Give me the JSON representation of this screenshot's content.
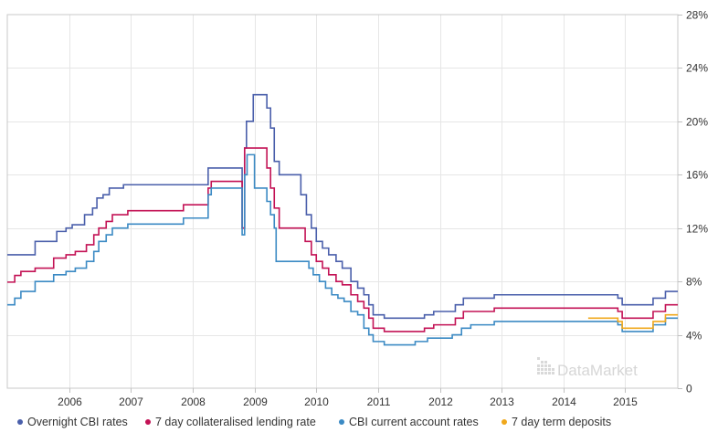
{
  "watermark": "DataMarket",
  "chart_data": {
    "type": "line",
    "title": "",
    "xlabel": "",
    "ylabel": "",
    "x_range": [
      2005.0,
      2015.85
    ],
    "ylim": [
      0,
      28
    ],
    "x_ticks": [
      {
        "label": "2006",
        "value": 2006.0
      },
      {
        "label": "2007",
        "value": 2007.0
      },
      {
        "label": "2008",
        "value": 2008.0
      },
      {
        "label": "2009",
        "value": 2009.0
      },
      {
        "label": "2010",
        "value": 2010.0
      },
      {
        "label": "2011",
        "value": 2011.0
      },
      {
        "label": "2012",
        "value": 2012.0
      },
      {
        "label": "2013",
        "value": 2013.0
      },
      {
        "label": "2014",
        "value": 2014.0
      },
      {
        "label": "2015",
        "value": 2015.0
      }
    ],
    "y_ticks": [
      {
        "label": "0",
        "value": 0
      },
      {
        "label": "4%",
        "value": 4
      },
      {
        "label": "8%",
        "value": 8
      },
      {
        "label": "12%",
        "value": 12
      },
      {
        "label": "16%",
        "value": 16
      },
      {
        "label": "20%",
        "value": 20
      },
      {
        "label": "24%",
        "value": 24
      },
      {
        "label": "28%",
        "value": 28
      }
    ],
    "y_axis_side": "right",
    "grid": true,
    "legend_position": "bottom",
    "series": [
      {
        "name": "Overnight CBI rates",
        "color": "#4a5fab",
        "points": [
          [
            2005.0,
            10.0
          ],
          [
            2005.45,
            10.0
          ],
          [
            2005.45,
            11.0
          ],
          [
            2005.8,
            11.0
          ],
          [
            2005.8,
            11.75
          ],
          [
            2005.95,
            11.75
          ],
          [
            2005.95,
            12.0
          ],
          [
            2006.05,
            12.0
          ],
          [
            2006.05,
            12.25
          ],
          [
            2006.25,
            12.25
          ],
          [
            2006.25,
            13.0
          ],
          [
            2006.38,
            13.0
          ],
          [
            2006.38,
            13.5
          ],
          [
            2006.45,
            13.5
          ],
          [
            2006.45,
            14.25
          ],
          [
            2006.55,
            14.25
          ],
          [
            2006.55,
            14.5
          ],
          [
            2006.65,
            14.5
          ],
          [
            2006.65,
            15.0
          ],
          [
            2006.88,
            15.0
          ],
          [
            2006.88,
            15.25
          ],
          [
            2008.25,
            15.25
          ],
          [
            2008.25,
            16.5
          ],
          [
            2008.8,
            16.5
          ],
          [
            2008.8,
            12.0
          ],
          [
            2008.84,
            12.0
          ],
          [
            2008.84,
            18.0
          ],
          [
            2008.87,
            18.0
          ],
          [
            2008.87,
            20.0
          ],
          [
            2008.98,
            20.0
          ],
          [
            2008.98,
            22.0
          ],
          [
            2009.2,
            22.0
          ],
          [
            2009.2,
            21.0
          ],
          [
            2009.26,
            21.0
          ],
          [
            2009.26,
            19.5
          ],
          [
            2009.32,
            19.5
          ],
          [
            2009.32,
            17.0
          ],
          [
            2009.4,
            17.0
          ],
          [
            2009.4,
            16.0
          ],
          [
            2009.75,
            16.0
          ],
          [
            2009.75,
            14.5
          ],
          [
            2009.84,
            14.5
          ],
          [
            2009.84,
            13.0
          ],
          [
            2009.92,
            13.0
          ],
          [
            2009.92,
            12.0
          ],
          [
            2010.0,
            12.0
          ],
          [
            2010.0,
            11.0
          ],
          [
            2010.1,
            11.0
          ],
          [
            2010.1,
            10.5
          ],
          [
            2010.2,
            10.5
          ],
          [
            2010.2,
            10.0
          ],
          [
            2010.32,
            10.0
          ],
          [
            2010.32,
            9.5
          ],
          [
            2010.42,
            9.5
          ],
          [
            2010.42,
            9.0
          ],
          [
            2010.56,
            9.0
          ],
          [
            2010.56,
            8.0
          ],
          [
            2010.67,
            8.0
          ],
          [
            2010.67,
            7.5
          ],
          [
            2010.77,
            7.5
          ],
          [
            2010.77,
            7.0
          ],
          [
            2010.85,
            7.0
          ],
          [
            2010.85,
            6.25
          ],
          [
            2010.92,
            6.25
          ],
          [
            2010.92,
            5.5
          ],
          [
            2011.1,
            5.5
          ],
          [
            2011.1,
            5.25
          ],
          [
            2011.75,
            5.25
          ],
          [
            2011.75,
            5.5
          ],
          [
            2011.9,
            5.5
          ],
          [
            2011.9,
            5.75
          ],
          [
            2012.25,
            5.75
          ],
          [
            2012.25,
            6.25
          ],
          [
            2012.38,
            6.25
          ],
          [
            2012.38,
            6.75
          ],
          [
            2012.88,
            6.75
          ],
          [
            2012.88,
            7.0
          ],
          [
            2014.88,
            7.0
          ],
          [
            2014.88,
            6.75
          ],
          [
            2014.95,
            6.75
          ],
          [
            2014.95,
            6.25
          ],
          [
            2015.45,
            6.25
          ],
          [
            2015.45,
            6.75
          ],
          [
            2015.65,
            6.75
          ],
          [
            2015.65,
            7.25
          ],
          [
            2015.85,
            7.25
          ]
        ]
      },
      {
        "name": "7 day collateralised lending rate",
        "color": "#c31255",
        "points": [
          [
            2005.0,
            7.95
          ],
          [
            2005.12,
            7.95
          ],
          [
            2005.12,
            8.45
          ],
          [
            2005.22,
            8.45
          ],
          [
            2005.22,
            8.75
          ],
          [
            2005.45,
            8.75
          ],
          [
            2005.45,
            9.0
          ],
          [
            2005.75,
            9.0
          ],
          [
            2005.75,
            9.75
          ],
          [
            2005.95,
            9.75
          ],
          [
            2005.95,
            10.0
          ],
          [
            2006.1,
            10.0
          ],
          [
            2006.1,
            10.25
          ],
          [
            2006.28,
            10.25
          ],
          [
            2006.28,
            10.75
          ],
          [
            2006.4,
            10.75
          ],
          [
            2006.4,
            11.5
          ],
          [
            2006.48,
            11.5
          ],
          [
            2006.48,
            12.0
          ],
          [
            2006.6,
            12.0
          ],
          [
            2006.6,
            12.5
          ],
          [
            2006.7,
            12.5
          ],
          [
            2006.7,
            13.0
          ],
          [
            2006.95,
            13.0
          ],
          [
            2006.95,
            13.3
          ],
          [
            2007.85,
            13.3
          ],
          [
            2007.85,
            13.75
          ],
          [
            2008.25,
            13.75
          ],
          [
            2008.25,
            15.0
          ],
          [
            2008.3,
            15.0
          ],
          [
            2008.3,
            15.5
          ],
          [
            2008.8,
            15.5
          ],
          [
            2008.8,
            12.0
          ],
          [
            2008.84,
            12.0
          ],
          [
            2008.84,
            18.0
          ],
          [
            2009.2,
            18.0
          ],
          [
            2009.2,
            16.5
          ],
          [
            2009.26,
            16.5
          ],
          [
            2009.26,
            15.0
          ],
          [
            2009.32,
            15.0
          ],
          [
            2009.32,
            13.5
          ],
          [
            2009.4,
            13.5
          ],
          [
            2009.4,
            12.0
          ],
          [
            2009.82,
            12.0
          ],
          [
            2009.82,
            11.0
          ],
          [
            2009.92,
            11.0
          ],
          [
            2009.92,
            10.0
          ],
          [
            2010.0,
            10.0
          ],
          [
            2010.0,
            9.5
          ],
          [
            2010.1,
            9.5
          ],
          [
            2010.1,
            9.0
          ],
          [
            2010.2,
            9.0
          ],
          [
            2010.2,
            8.5
          ],
          [
            2010.32,
            8.5
          ],
          [
            2010.32,
            8.0
          ],
          [
            2010.42,
            8.0
          ],
          [
            2010.42,
            7.75
          ],
          [
            2010.56,
            7.75
          ],
          [
            2010.56,
            7.0
          ],
          [
            2010.67,
            7.0
          ],
          [
            2010.67,
            6.5
          ],
          [
            2010.77,
            6.5
          ],
          [
            2010.77,
            6.0
          ],
          [
            2010.85,
            6.0
          ],
          [
            2010.85,
            5.25
          ],
          [
            2010.92,
            5.25
          ],
          [
            2010.92,
            4.5
          ],
          [
            2011.1,
            4.5
          ],
          [
            2011.1,
            4.25
          ],
          [
            2011.75,
            4.25
          ],
          [
            2011.75,
            4.5
          ],
          [
            2011.9,
            4.5
          ],
          [
            2011.9,
            4.75
          ],
          [
            2012.25,
            4.75
          ],
          [
            2012.25,
            5.25
          ],
          [
            2012.38,
            5.25
          ],
          [
            2012.38,
            5.75
          ],
          [
            2012.88,
            5.75
          ],
          [
            2012.88,
            6.0
          ],
          [
            2014.88,
            6.0
          ],
          [
            2014.88,
            5.75
          ],
          [
            2014.95,
            5.75
          ],
          [
            2014.95,
            5.25
          ],
          [
            2015.45,
            5.25
          ],
          [
            2015.45,
            5.75
          ],
          [
            2015.65,
            5.75
          ],
          [
            2015.65,
            6.25
          ],
          [
            2015.85,
            6.25
          ]
        ]
      },
      {
        "name": "CBI current account rates",
        "color": "#3b8ac4",
        "points": [
          [
            2005.0,
            6.25
          ],
          [
            2005.12,
            6.25
          ],
          [
            2005.12,
            6.75
          ],
          [
            2005.22,
            6.75
          ],
          [
            2005.22,
            7.25
          ],
          [
            2005.45,
            7.25
          ],
          [
            2005.45,
            8.0
          ],
          [
            2005.75,
            8.0
          ],
          [
            2005.75,
            8.5
          ],
          [
            2005.95,
            8.5
          ],
          [
            2005.95,
            8.75
          ],
          [
            2006.1,
            8.75
          ],
          [
            2006.1,
            9.0
          ],
          [
            2006.28,
            9.0
          ],
          [
            2006.28,
            9.5
          ],
          [
            2006.4,
            9.5
          ],
          [
            2006.4,
            10.25
          ],
          [
            2006.48,
            10.25
          ],
          [
            2006.48,
            11.0
          ],
          [
            2006.6,
            11.0
          ],
          [
            2006.6,
            11.5
          ],
          [
            2006.7,
            11.5
          ],
          [
            2006.7,
            12.0
          ],
          [
            2006.95,
            12.0
          ],
          [
            2006.95,
            12.3
          ],
          [
            2007.85,
            12.3
          ],
          [
            2007.85,
            12.75
          ],
          [
            2008.25,
            12.75
          ],
          [
            2008.25,
            14.5
          ],
          [
            2008.3,
            14.5
          ],
          [
            2008.3,
            15.0
          ],
          [
            2008.8,
            15.0
          ],
          [
            2008.8,
            11.5
          ],
          [
            2008.84,
            11.5
          ],
          [
            2008.84,
            16.0
          ],
          [
            2008.88,
            16.0
          ],
          [
            2008.88,
            17.5
          ],
          [
            2009.0,
            17.5
          ],
          [
            2009.0,
            15.0
          ],
          [
            2009.2,
            15.0
          ],
          [
            2009.2,
            14.0
          ],
          [
            2009.26,
            14.0
          ],
          [
            2009.26,
            13.0
          ],
          [
            2009.32,
            13.0
          ],
          [
            2009.32,
            12.0
          ],
          [
            2009.35,
            12.0
          ],
          [
            2009.35,
            9.5
          ],
          [
            2009.88,
            9.5
          ],
          [
            2009.88,
            9.0
          ],
          [
            2009.95,
            9.0
          ],
          [
            2009.95,
            8.5
          ],
          [
            2010.05,
            8.5
          ],
          [
            2010.05,
            8.0
          ],
          [
            2010.15,
            8.0
          ],
          [
            2010.15,
            7.5
          ],
          [
            2010.25,
            7.5
          ],
          [
            2010.25,
            7.0
          ],
          [
            2010.35,
            7.0
          ],
          [
            2010.35,
            6.75
          ],
          [
            2010.45,
            6.75
          ],
          [
            2010.45,
            6.5
          ],
          [
            2010.56,
            6.5
          ],
          [
            2010.56,
            5.75
          ],
          [
            2010.67,
            5.75
          ],
          [
            2010.67,
            5.5
          ],
          [
            2010.77,
            5.5
          ],
          [
            2010.77,
            4.5
          ],
          [
            2010.85,
            4.5
          ],
          [
            2010.85,
            4.0
          ],
          [
            2010.92,
            4.0
          ],
          [
            2010.92,
            3.5
          ],
          [
            2011.1,
            3.5
          ],
          [
            2011.1,
            3.25
          ],
          [
            2011.6,
            3.25
          ],
          [
            2011.6,
            3.5
          ],
          [
            2011.8,
            3.5
          ],
          [
            2011.8,
            3.75
          ],
          [
            2012.2,
            3.75
          ],
          [
            2012.2,
            4.0
          ],
          [
            2012.35,
            4.0
          ],
          [
            2012.35,
            4.5
          ],
          [
            2012.5,
            4.5
          ],
          [
            2012.5,
            4.75
          ],
          [
            2012.88,
            4.75
          ],
          [
            2012.88,
            5.0
          ],
          [
            2014.88,
            5.0
          ],
          [
            2014.88,
            4.75
          ],
          [
            2014.95,
            4.75
          ],
          [
            2014.95,
            4.25
          ],
          [
            2015.45,
            4.25
          ],
          [
            2015.45,
            4.75
          ],
          [
            2015.65,
            4.75
          ],
          [
            2015.65,
            5.25
          ],
          [
            2015.85,
            5.25
          ]
        ]
      },
      {
        "name": "7 day term deposits",
        "color": "#f0a81c",
        "points": [
          [
            2014.4,
            5.25
          ],
          [
            2014.88,
            5.25
          ],
          [
            2014.88,
            5.0
          ],
          [
            2014.95,
            5.0
          ],
          [
            2014.95,
            4.5
          ],
          [
            2015.45,
            4.5
          ],
          [
            2015.45,
            5.0
          ],
          [
            2015.65,
            5.0
          ],
          [
            2015.65,
            5.5
          ],
          [
            2015.85,
            5.5
          ]
        ]
      }
    ]
  }
}
